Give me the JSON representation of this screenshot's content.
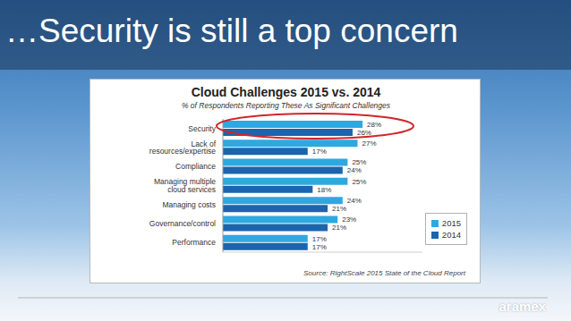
{
  "slide_title": "…Security is still a top concern",
  "logo": "aramex",
  "chart_data": {
    "type": "bar",
    "orientation": "horizontal",
    "title": "Cloud Challenges 2015 vs. 2014",
    "subtitle": "% of Respondents Reporting These As Significant Challenges",
    "annotations": [
      "Source: RightScale 2015 State of the Cloud Report"
    ],
    "categories": [
      "Security",
      "Lack of resources/expertise",
      "Compliance",
      "Managing multiple cloud services",
      "Managing costs",
      "Governance/control",
      "Performance"
    ],
    "series": [
      {
        "name": "2015",
        "color": "#2fa8e0",
        "values": [
          28,
          27,
          25,
          25,
          24,
          23,
          17
        ],
        "value_labels": [
          "28%",
          "27%",
          "25%",
          "25%",
          "24%",
          "23%",
          "17%"
        ]
      },
      {
        "name": "2014",
        "color": "#1c64ad",
        "values": [
          26,
          17,
          24,
          18,
          21,
          21,
          17
        ],
        "value_labels": [
          "26%",
          "17%",
          "24%",
          "18%",
          "21%",
          "21%",
          "17%"
        ]
      }
    ],
    "xlim": [
      0,
      40
    ],
    "data_labels": true,
    "tick_labels": "y",
    "legend": "lower right"
  }
}
